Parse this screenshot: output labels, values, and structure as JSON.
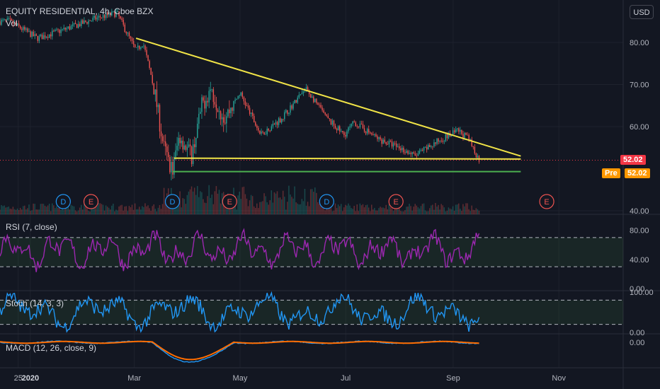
{
  "header": {
    "title": "EQUITY RESIDENTIAL, 4h, Cboe BZX",
    "vol_label": "Vol",
    "currency": "USD"
  },
  "price_badge": {
    "value": "52.02",
    "pre_label": "Pre",
    "pre_value": "52.02"
  },
  "colors": {
    "background": "#131722",
    "up": "#26a69a",
    "down": "#ef5350",
    "trendline": "#f1e447",
    "support": "#4caf50",
    "rsi": "#9c27b0",
    "stoch": "#2196f3",
    "macd": "#2196f3",
    "signal": "#ff6d00",
    "badge": "#f23645",
    "pre_badge": "#ff9800"
  },
  "chart_data": [
    {
      "type": "candlestick",
      "title": "EQUITY RESIDENTIAL, 4h, Cboe BZX",
      "x_ticks": [
        "25",
        "2020",
        "Mar",
        "May",
        "Jul",
        "Sep",
        "Nov"
      ],
      "y_ticks": [
        "80.00",
        "70.00",
        "60.00",
        "40.00"
      ],
      "ylim": [
        40,
        90
      ],
      "approx_close_path": [
        {
          "date": "2019-12-20",
          "close": 85
        },
        {
          "date": "2020-01-05",
          "close": 81
        },
        {
          "date": "2020-01-20",
          "close": 83
        },
        {
          "date": "2020-02-10",
          "close": 86
        },
        {
          "date": "2020-02-20",
          "close": 87
        },
        {
          "date": "2020-02-26",
          "close": 82
        },
        {
          "date": "2020-03-02",
          "close": 78
        },
        {
          "date": "2020-03-06",
          "close": 80
        },
        {
          "date": "2020-03-12",
          "close": 70
        },
        {
          "date": "2020-03-18",
          "close": 55
        },
        {
          "date": "2020-03-23",
          "close": 49.5
        },
        {
          "date": "2020-03-27",
          "close": 58
        },
        {
          "date": "2020-04-03",
          "close": 53
        },
        {
          "date": "2020-04-09",
          "close": 65
        },
        {
          "date": "2020-04-14",
          "close": 69
        },
        {
          "date": "2020-04-22",
          "close": 62
        },
        {
          "date": "2020-05-01",
          "close": 68
        },
        {
          "date": "2020-05-13",
          "close": 58
        },
        {
          "date": "2020-05-25",
          "close": 62
        },
        {
          "date": "2020-06-08",
          "close": 69
        },
        {
          "date": "2020-06-20",
          "close": 62
        },
        {
          "date": "2020-06-30",
          "close": 58
        },
        {
          "date": "2020-07-06",
          "close": 61
        },
        {
          "date": "2020-07-20",
          "close": 57
        },
        {
          "date": "2020-08-01",
          "close": 55
        },
        {
          "date": "2020-08-10",
          "close": 53
        },
        {
          "date": "2020-08-25",
          "close": 57
        },
        {
          "date": "2020-09-04",
          "close": 59
        },
        {
          "date": "2020-09-10",
          "close": 57
        },
        {
          "date": "2020-09-16",
          "close": 52.02
        }
      ],
      "annotations": [
        {
          "kind": "trendline",
          "from": {
            "date": "2020-03-02",
            "value": 81
          },
          "to": {
            "date": "2020-10-10",
            "value": 53
          }
        },
        {
          "kind": "trendline",
          "from": {
            "date": "2020-03-24",
            "value": 52.5
          },
          "to": {
            "date": "2020-10-10",
            "value": 52.3
          }
        },
        {
          "kind": "support",
          "from": {
            "date": "2020-03-23",
            "value": 49.3
          },
          "to": {
            "date": "2020-10-10",
            "value": 49.3
          }
        }
      ],
      "events": [
        {
          "label": "D",
          "date": "2020-01-20"
        },
        {
          "label": "E",
          "date": "2020-02-05"
        },
        {
          "label": "D",
          "date": "2020-03-23"
        },
        {
          "label": "E",
          "date": "2020-04-25"
        },
        {
          "label": "D",
          "date": "2020-06-20"
        },
        {
          "label": "E",
          "date": "2020-07-30"
        },
        {
          "label": "E",
          "date": "2020-10-25"
        }
      ]
    },
    {
      "type": "line",
      "title": "RSI (7, close)",
      "y_ticks": [
        "80.00",
        "40.00",
        "0.00"
      ],
      "ylim": [
        0,
        100
      ],
      "bands": [
        70,
        30
      ]
    },
    {
      "type": "line",
      "title": "Stoch (14, 3, 3)",
      "y_ticks": [
        "100.00",
        "0.00"
      ],
      "ylim": [
        0,
        100
      ],
      "bands": [
        80,
        20
      ]
    },
    {
      "type": "line",
      "title": "MACD (12, 26, close, 9)",
      "y_ticks": [
        "0.00"
      ]
    }
  ]
}
